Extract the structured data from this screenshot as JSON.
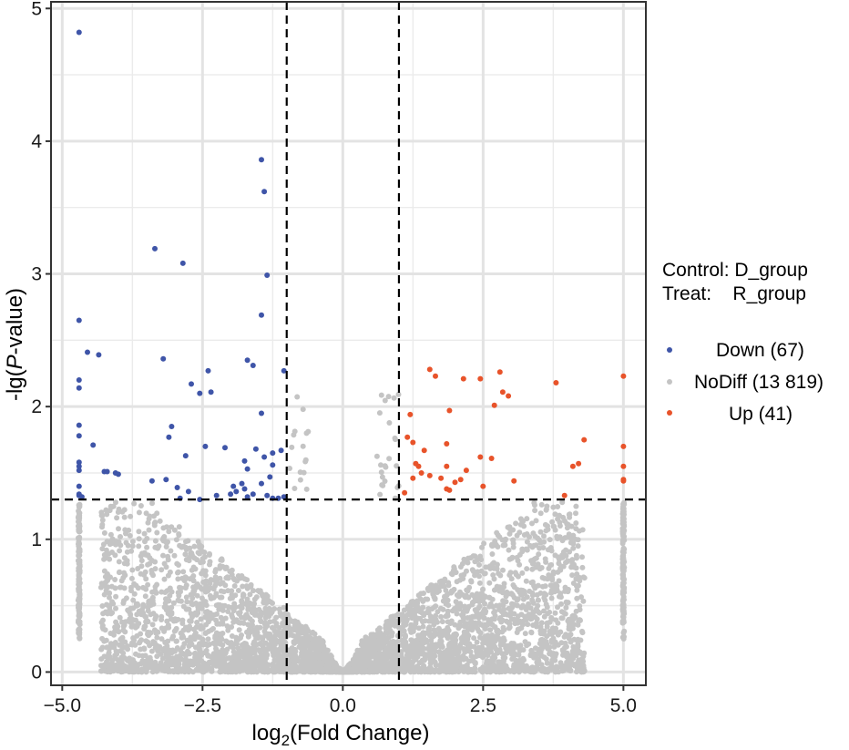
{
  "chart_data": {
    "type": "scatter",
    "title": "",
    "xlabel": {
      "prefix": "log",
      "sub": "2",
      "suffix": "(Fold Change)"
    },
    "ylabel": {
      "prefix": "-lg(",
      "italic": "P",
      "suffix": "-value)"
    },
    "xlim": [
      -5.2,
      5.4
    ],
    "ylim": [
      -0.1,
      5.05
    ],
    "x_ticks": [
      {
        "value": -5,
        "label": "-5.0"
      },
      {
        "value": -2.5,
        "label": "-2.5"
      },
      {
        "value": 0,
        "label": "0.0"
      },
      {
        "value": 2.5,
        "label": "2.5"
      },
      {
        "value": 5,
        "label": "5.0"
      }
    ],
    "y_ticks": [
      {
        "value": 0,
        "label": "0"
      },
      {
        "value": 1,
        "label": "1"
      },
      {
        "value": 2,
        "label": "2"
      },
      {
        "value": 3,
        "label": "3"
      },
      {
        "value": 4,
        "label": "4"
      },
      {
        "value": 5,
        "label": "5"
      }
    ],
    "grid": true,
    "thresholds": {
      "fold_change_x": [
        -1,
        1
      ],
      "pvalue_y": 1.3
    },
    "legend": {
      "placement": "right",
      "header_lines": [
        "Control: D_group",
        "Treat:    R_group"
      ],
      "entries": [
        {
          "label": "Down (67)",
          "color": "#3f55a8"
        },
        {
          "label": "NoDiff (13 819)",
          "color": "#c4c4c4"
        },
        {
          "label": "Up (41)",
          "color": "#e8532a"
        }
      ]
    },
    "series": [
      {
        "name": "Down (67)",
        "color": "#3f55a8",
        "points": [
          [
            -4.7,
            4.82
          ],
          [
            -1.45,
            3.86
          ],
          [
            -1.4,
            3.62
          ],
          [
            -3.35,
            3.19
          ],
          [
            -2.85,
            3.08
          ],
          [
            -1.35,
            2.99
          ],
          [
            -1.45,
            2.69
          ],
          [
            -4.7,
            2.65
          ],
          [
            -4.55,
            2.41
          ],
          [
            -4.35,
            2.39
          ],
          [
            -3.2,
            2.36
          ],
          [
            -1.7,
            2.35
          ],
          [
            -1.6,
            2.31
          ],
          [
            -2.4,
            2.27
          ],
          [
            -1.05,
            2.27
          ],
          [
            -4.7,
            2.2
          ],
          [
            -2.7,
            2.17
          ],
          [
            -4.7,
            2.14
          ],
          [
            -2.35,
            2.11
          ],
          [
            -2.55,
            2.1
          ],
          [
            -1.45,
            1.95
          ],
          [
            -4.7,
            1.86
          ],
          [
            -3.05,
            1.85
          ],
          [
            -4.7,
            1.78
          ],
          [
            -3.1,
            1.77
          ],
          [
            -4.45,
            1.71
          ],
          [
            -2.45,
            1.7
          ],
          [
            -2.1,
            1.69
          ],
          [
            -1.55,
            1.68
          ],
          [
            -1.1,
            1.67
          ],
          [
            -1.25,
            1.65
          ],
          [
            -2.8,
            1.63
          ],
          [
            -1.4,
            1.62
          ],
          [
            -1.75,
            1.59
          ],
          [
            -4.7,
            1.58
          ],
          [
            -1.25,
            1.56
          ],
          [
            -4.7,
            1.55
          ],
          [
            -1.7,
            1.53
          ],
          [
            -4.7,
            1.52
          ],
          [
            -4.25,
            1.51
          ],
          [
            -4.2,
            1.51
          ],
          [
            -4.05,
            1.5
          ],
          [
            -4.0,
            1.49
          ],
          [
            -1.3,
            1.47
          ],
          [
            -3.4,
            1.44
          ],
          [
            -3.15,
            1.45
          ],
          [
            -1.8,
            1.42
          ],
          [
            -1.45,
            1.42
          ],
          [
            -1.95,
            1.4
          ],
          [
            -1.75,
            1.38
          ],
          [
            -2.95,
            1.39
          ],
          [
            -4.7,
            1.4
          ],
          [
            -2.75,
            1.36
          ],
          [
            -1.9,
            1.36
          ],
          [
            -2.0,
            1.34
          ],
          [
            -4.7,
            1.34
          ],
          [
            -4.7,
            1.33
          ],
          [
            -1.6,
            1.34
          ],
          [
            -1.35,
            1.33
          ],
          [
            -2.25,
            1.33
          ],
          [
            -1.05,
            1.32
          ],
          [
            -1.15,
            1.31
          ],
          [
            -1.25,
            1.31
          ],
          [
            -1.7,
            1.32
          ],
          [
            -2.9,
            1.31
          ],
          [
            -4.65,
            1.32
          ],
          [
            -2.55,
            1.3
          ]
        ]
      },
      {
        "name": "Up (41)",
        "color": "#e8532a",
        "points": [
          [
            1.55,
            2.28
          ],
          [
            1.65,
            2.23
          ],
          [
            2.8,
            2.26
          ],
          [
            5.0,
            2.23
          ],
          [
            2.15,
            2.21
          ],
          [
            2.45,
            2.21
          ],
          [
            3.8,
            2.18
          ],
          [
            2.85,
            2.11
          ],
          [
            1.2,
            1.94
          ],
          [
            1.9,
            1.97
          ],
          [
            2.7,
            2.01
          ],
          [
            2.95,
            2.08
          ],
          [
            1.15,
            1.77
          ],
          [
            1.25,
            1.73
          ],
          [
            1.85,
            1.72
          ],
          [
            4.3,
            1.75
          ],
          [
            1.45,
            1.67
          ],
          [
            4.2,
            1.57
          ],
          [
            5.0,
            1.7
          ],
          [
            2.45,
            1.62
          ],
          [
            2.65,
            1.61
          ],
          [
            1.3,
            1.57
          ],
          [
            1.35,
            1.55
          ],
          [
            4.1,
            1.55
          ],
          [
            1.85,
            1.55
          ],
          [
            2.2,
            1.52
          ],
          [
            5.0,
            1.55
          ],
          [
            1.4,
            1.5
          ],
          [
            1.55,
            1.48
          ],
          [
            1.25,
            1.46
          ],
          [
            1.75,
            1.46
          ],
          [
            2.1,
            1.45
          ],
          [
            3.05,
            1.44
          ],
          [
            5.0,
            1.45
          ],
          [
            2.0,
            1.43
          ],
          [
            5.0,
            1.44
          ],
          [
            2.5,
            1.4
          ],
          [
            1.85,
            1.38
          ],
          [
            1.9,
            1.37
          ],
          [
            1.1,
            1.35
          ],
          [
            3.95,
            1.33
          ]
        ]
      },
      {
        "name": "NoDiff (13 819)",
        "color": "#c4c4c4",
        "distribution": "v-shaped cloud centred at 0; grey columns at x=-4.7 and x=5.0 reaching y=1.28",
        "seed": 7,
        "count": 4200
      }
    ]
  }
}
